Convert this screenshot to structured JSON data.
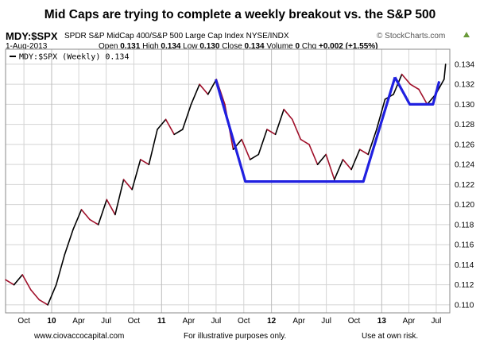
{
  "headline": "Mid Caps are trying to complete a weekly breakout vs. the S&P 500",
  "header": {
    "symbol": "MDY:$SPX",
    "description": "SPDR S&P MidCap 400/S&P 500 Large Cap Index  NYSE/INDX",
    "credit": "© StockCharts.com",
    "date": "1-Aug-2013",
    "open_label": "Open",
    "open": "0.131",
    "high_label": "High",
    "high": "0.134",
    "low_label": "Low",
    "low": "0.130",
    "close_label": "Close",
    "close": "0.134",
    "volume_label": "Volume",
    "volume": "0",
    "chg_label": "Chg",
    "chg": "+0.002 (+1.55%)",
    "triangle_color": "#6a9a3a"
  },
  "footer": {
    "site": "www.ciovaccocapital.com",
    "illustrative": "For illustrative purposes only.",
    "risk": "Use at own risk."
  },
  "chart_data": {
    "type": "line",
    "legend": "MDY:$SPX (Weekly) 0.134",
    "x_tick_labels": [
      "Oct",
      "10",
      "Apr",
      "Jul",
      "Oct",
      "11",
      "Apr",
      "Jul",
      "Oct",
      "12",
      "Apr",
      "Jul",
      "Oct",
      "13",
      "Apr",
      "Jul"
    ],
    "year_ticks": [
      "10",
      "11",
      "12",
      "13"
    ],
    "y_ticks": [
      0.11,
      0.112,
      0.114,
      0.116,
      0.118,
      0.12,
      0.122,
      0.124,
      0.126,
      0.128,
      0.13,
      0.132,
      0.134
    ],
    "ylim": [
      0.1092,
      0.1355
    ],
    "xlim": [
      "2009-08-01",
      "2013-08-15"
    ],
    "grid": true,
    "up_color": "#000000",
    "down_color": "#a0102a",
    "pattern_color": "#2020e0",
    "series": [
      {
        "name": "MDY:$SPX (Weekly)",
        "x": [
          "2009-08-01",
          "2009-08-29",
          "2009-09-26",
          "2009-10-24",
          "2009-11-21",
          "2009-12-19",
          "2010-01-16",
          "2010-02-13",
          "2010-03-13",
          "2010-04-10",
          "2010-05-08",
          "2010-06-05",
          "2010-07-03",
          "2010-07-31",
          "2010-08-28",
          "2010-09-25",
          "2010-10-23",
          "2010-11-20",
          "2010-12-18",
          "2011-01-15",
          "2011-02-12",
          "2011-03-12",
          "2011-04-09",
          "2011-05-07",
          "2011-06-04",
          "2011-07-02",
          "2011-07-30",
          "2011-08-27",
          "2011-09-24",
          "2011-10-22",
          "2011-11-19",
          "2011-12-17",
          "2012-01-14",
          "2012-02-11",
          "2012-03-10",
          "2012-04-07",
          "2012-05-05",
          "2012-06-02",
          "2012-06-30",
          "2012-07-28",
          "2012-08-25",
          "2012-09-22",
          "2012-10-20",
          "2012-11-17",
          "2012-12-15",
          "2013-01-12",
          "2013-02-09",
          "2013-03-09",
          "2013-04-06",
          "2013-05-04",
          "2013-06-01",
          "2013-06-29",
          "2013-07-27",
          "2013-08-01"
        ],
        "values": [
          0.1125,
          0.112,
          0.113,
          0.1115,
          0.1105,
          0.11,
          0.112,
          0.115,
          0.1175,
          0.1195,
          0.1185,
          0.118,
          0.1205,
          0.119,
          0.1225,
          0.1215,
          0.1245,
          0.124,
          0.1275,
          0.1285,
          0.127,
          0.1275,
          0.13,
          0.132,
          0.131,
          0.1325,
          0.13,
          0.1255,
          0.1265,
          0.1245,
          0.125,
          0.1275,
          0.127,
          0.1295,
          0.1285,
          0.1265,
          0.126,
          0.124,
          0.125,
          0.1225,
          0.1245,
          0.1235,
          0.1255,
          0.125,
          0.1275,
          0.1305,
          0.131,
          0.133,
          0.132,
          0.1315,
          0.13,
          0.131,
          0.1325,
          0.134
        ]
      }
    ],
    "pattern_lines": [
      {
        "name": "rounding-bottom",
        "x": [
          "2011-06-30",
          "2011-10-06",
          "2012-11-01",
          "2013-02-14"
        ],
        "values": [
          0.1325,
          0.1223,
          0.1223,
          0.1327
        ]
      },
      {
        "name": "handle",
        "x": [
          "2013-02-14",
          "2013-04-04",
          "2013-06-20",
          "2013-07-11"
        ],
        "values": [
          0.1327,
          0.13,
          0.13,
          0.1323
        ]
      }
    ]
  }
}
